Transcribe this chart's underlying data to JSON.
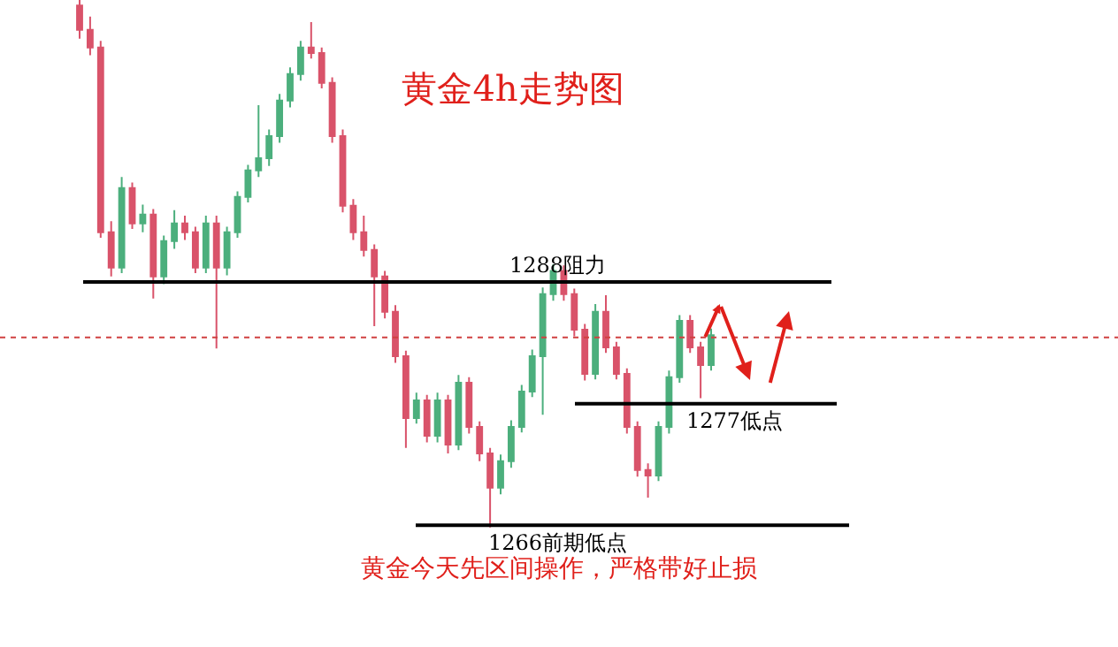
{
  "chart_data": {
    "type": "candlestick",
    "title": "黄金4h走势图",
    "categories": [
      null,
      null,
      null,
      null,
      null,
      null,
      null,
      null,
      null,
      null,
      null,
      null,
      null,
      null,
      null,
      null,
      null,
      null,
      null,
      null,
      null,
      null,
      null,
      null,
      null,
      null,
      null,
      null,
      null,
      null,
      null,
      null,
      null,
      null,
      null,
      null,
      null,
      null,
      null,
      null,
      null,
      null,
      null,
      null,
      null,
      null,
      null,
      null,
      null,
      null,
      null,
      null,
      null,
      null,
      null,
      null,
      null,
      null,
      null,
      null,
      null
    ],
    "ohlc": [
      [
        1313,
        1314,
        1310,
        1310.8
      ],
      [
        1310.8,
        1312,
        1308.5,
        1309.2
      ],
      [
        1309.2,
        1309.8,
        1292,
        1292.5
      ],
      [
        1292.5,
        1293.5,
        1288.5,
        1289.3
      ],
      [
        1289.3,
        1297.5,
        1288.8,
        1296.5
      ],
      [
        1296.5,
        1297,
        1292.8,
        1293.3
      ],
      [
        1293.3,
        1295,
        1292.5,
        1294.1
      ],
      [
        1294.1,
        1294.6,
        1286.5,
        1288.5
      ],
      [
        1288.5,
        1292.2,
        1287.8,
        1291.7
      ],
      [
        1291.7,
        1294.5,
        1291,
        1293.3
      ],
      [
        1293.3,
        1294,
        1291.8,
        1292.5
      ],
      [
        1292.5,
        1293,
        1288.8,
        1289.3
      ],
      [
        1289.3,
        1294,
        1288.8,
        1293.3
      ],
      [
        1293.3,
        1294,
        1282,
        1289.3
      ],
      [
        1289.3,
        1293,
        1288.6,
        1292.5
      ],
      [
        1292.5,
        1296.2,
        1292,
        1295.7
      ],
      [
        1295.7,
        1298.6,
        1295.2,
        1298.1
      ],
      [
        1298.1,
        1304,
        1297.5,
        1299.2
      ],
      [
        1299.2,
        1301.8,
        1298.5,
        1301.2
      ],
      [
        1301.2,
        1305,
        1300.6,
        1304.4
      ],
      [
        1304.4,
        1307.4,
        1303.8,
        1306.8
      ],
      [
        1306.8,
        1309.8,
        1306.2,
        1309.2
      ],
      [
        1309.2,
        1311.5,
        1308.2,
        1308.7
      ],
      [
        1308.7,
        1309.2,
        1305.5,
        1306
      ],
      [
        1306,
        1306.5,
        1300.6,
        1301.2
      ],
      [
        1301.2,
        1301.8,
        1294.3,
        1294.9
      ],
      [
        1294.9,
        1295.5,
        1291.8,
        1292.5
      ],
      [
        1292.5,
        1294,
        1290.3,
        1290.9
      ],
      [
        1290.9,
        1291.4,
        1284,
        1288.5
      ],
      [
        1288.5,
        1289,
        1284.7,
        1285.3
      ],
      [
        1285.3,
        1285.9,
        1280.7,
        1281.3
      ],
      [
        1281.3,
        1281.8,
        1273,
        1275.7
      ],
      [
        1275.7,
        1278,
        1275.2,
        1277.3
      ],
      [
        1277.3,
        1277.8,
        1273.5,
        1274.1
      ],
      [
        1274.1,
        1278,
        1273.5,
        1277.3
      ],
      [
        1277.3,
        1277.8,
        1272.5,
        1273.3
      ],
      [
        1273.3,
        1279.6,
        1272.8,
        1278.9
      ],
      [
        1278.9,
        1279.4,
        1274.3,
        1274.9
      ],
      [
        1274.9,
        1275.4,
        1271.8,
        1272.5
      ],
      [
        1272.5,
        1273,
        1265.8,
        1269.4
      ],
      [
        1269.4,
        1272.4,
        1268.8,
        1271.8
      ],
      [
        1271.8,
        1275.5,
        1271.2,
        1274.9
      ],
      [
        1274.9,
        1278.7,
        1274.4,
        1278.1
      ],
      [
        1278.1,
        1281.9,
        1277.6,
        1281.3
      ],
      [
        1281.3,
        1287.5,
        1276,
        1286.9
      ],
      [
        1286.9,
        1289.6,
        1286.3,
        1289
      ],
      [
        1289,
        1289.5,
        1286.3,
        1286.9
      ],
      [
        1286.9,
        1287.4,
        1283.1,
        1283.7
      ],
      [
        1283.7,
        1284.2,
        1279.1,
        1279.7
      ],
      [
        1279.7,
        1286,
        1279.2,
        1285.3
      ],
      [
        1285.3,
        1286.8,
        1281.6,
        1282.1
      ],
      [
        1282.1,
        1282.6,
        1279.2,
        1279.7
      ],
      [
        1279.7,
        1280.2,
        1274.3,
        1274.9
      ],
      [
        1274.9,
        1275.4,
        1270.4,
        1271
      ],
      [
        1271,
        1271.6,
        1268.5,
        1270.5
      ],
      [
        1270.5,
        1275.4,
        1270,
        1274.9
      ],
      [
        1274.9,
        1280,
        1274.3,
        1279.4
      ],
      [
        1279.4,
        1285,
        1278.9,
        1284.5
      ],
      [
        1284.5,
        1285,
        1281.6,
        1282.1
      ],
      [
        1282.1,
        1282.6,
        1277.5,
        1280.5
      ],
      [
        1280.5,
        1283.8,
        1280,
        1283.2
      ]
    ],
    "colors": [
      "#d9536a",
      "#d9536a",
      "#d9536a",
      "#d9536a",
      "#4caf7d",
      "#d9536a",
      "#4caf7d",
      "#d9536a",
      "#4caf7d",
      "#4caf7d",
      "#d9536a",
      "#d9536a",
      "#4caf7d",
      "#d9536a",
      "#4caf7d",
      "#4caf7d",
      "#4caf7d",
      "#4caf7d",
      "#4caf7d",
      "#4caf7d",
      "#4caf7d",
      "#4caf7d",
      "#d9536a",
      "#d9536a",
      "#d9536a",
      "#d9536a",
      "#d9536a",
      "#d9536a",
      "#d9536a",
      "#d9536a",
      "#d9536a",
      "#d9536a",
      "#4caf7d",
      "#d9536a",
      "#4caf7d",
      "#d9536a",
      "#4caf7d",
      "#d9536a",
      "#d9536a",
      "#d9536a",
      "#4caf7d",
      "#4caf7d",
      "#4caf7d",
      "#4caf7d",
      "#4caf7d",
      "#4caf7d",
      "#d9536a",
      "#d9536a",
      "#d9536a",
      "#4caf7d",
      "#d9536a",
      "#d9536a",
      "#d9536a",
      "#d9536a",
      "#d9536a",
      "#4caf7d",
      "#4caf7d",
      "#4caf7d",
      "#d9536a",
      "#d9536a",
      "#4caf7d"
    ],
    "ylim": [
      1255,
      1313.5
    ],
    "tick_labels": false,
    "ref_lines": [
      {
        "axis": "y",
        "value": 1288,
        "label": "1288阻力",
        "color": "#000000",
        "line_style": "solid"
      },
      {
        "axis": "y",
        "value": 1277,
        "label": "1277低点",
        "color": "#000000",
        "line_style": "solid"
      },
      {
        "axis": "y",
        "value": 1266,
        "label": "1266前期低点",
        "color": "#000000",
        "line_style": "solid"
      },
      {
        "axis": "y",
        "value": 1283,
        "color": "#d04040",
        "line_style": "dotted"
      }
    ],
    "annotations": [
      "黄金今天先区间操作，严格带好止损"
    ]
  }
}
